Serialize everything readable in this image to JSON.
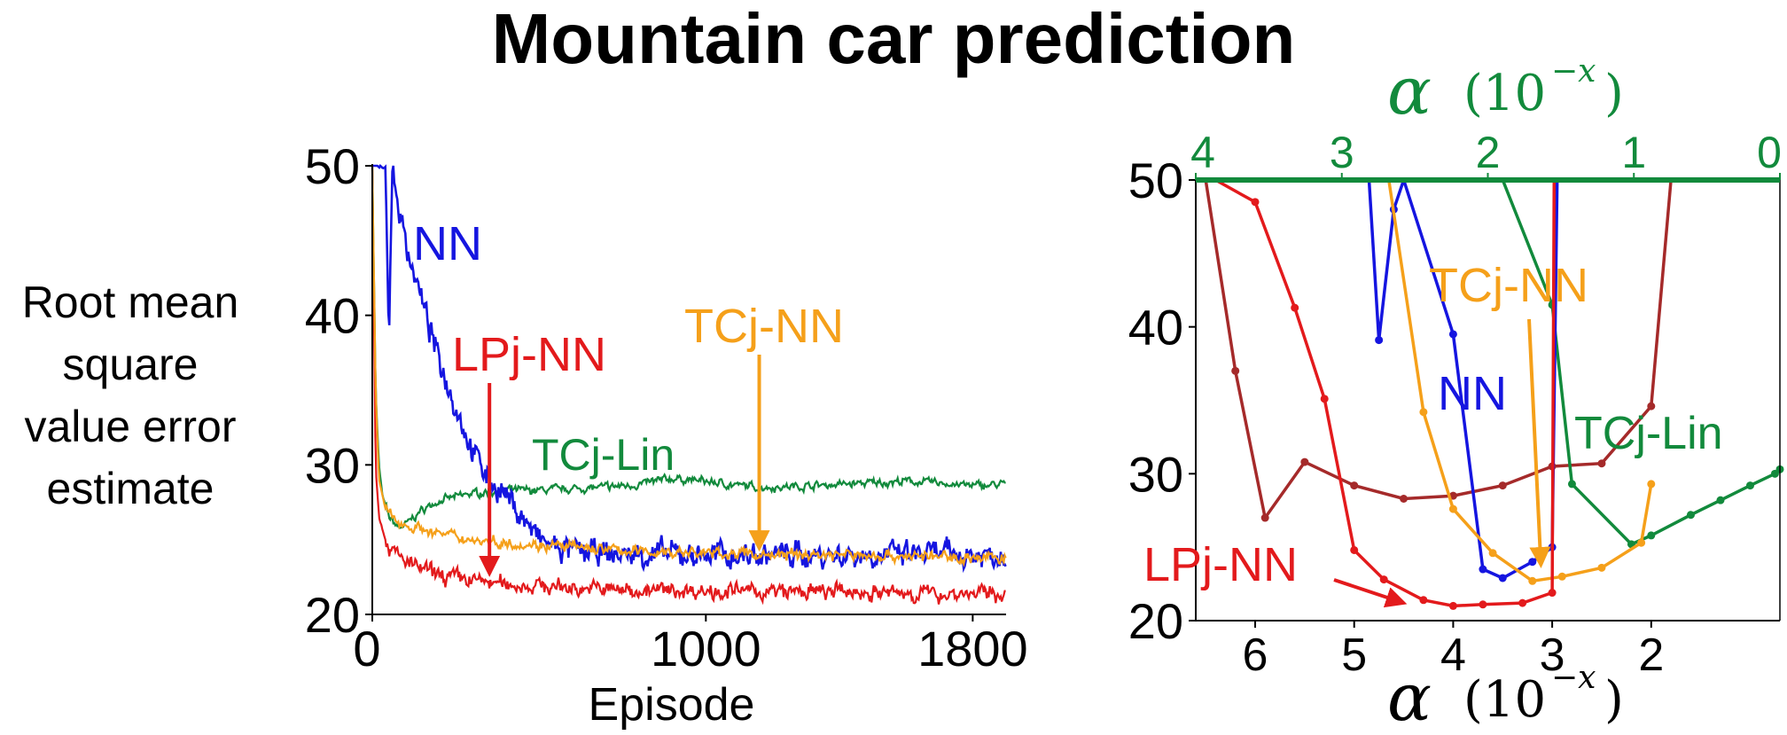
{
  "page": {
    "title": "Mountain car prediction"
  },
  "colors": {
    "NN": "#1515e0",
    "LPj-NN": "#e31a1c",
    "TCj-NN": "#f5a01a",
    "TCj-Lin": "#128a3c",
    "other": "#a52a2a",
    "axis": "#000000",
    "top_axis": "#128a3c"
  },
  "chart_data": [
    {
      "type": "line",
      "title": "",
      "xlabel": "Episode",
      "ylabel": "Root mean square value error estimate",
      "ylabel_lines": [
        "Root mean",
        "square",
        "value error",
        "estimate"
      ],
      "xlim": [
        0,
        1900
      ],
      "ylim": [
        20,
        50
      ],
      "xticks": [
        0,
        1000,
        1800
      ],
      "xtick_labels": [
        "0",
        "1000",
        "1800"
      ],
      "yticks": [
        20,
        30,
        40,
        50
      ],
      "ytick_labels": [
        "20",
        "30",
        "40",
        "50"
      ],
      "annotations": [
        {
          "text": "NN",
          "series": "NN"
        },
        {
          "text": "LPj-NN",
          "series": "LPj-NN",
          "arrow_to": [
            330,
            22.5
          ]
        },
        {
          "text": "TCj-NN",
          "series": "TCj-NN",
          "arrow_to": [
            1160,
            24.2
          ]
        },
        {
          "text": "TCj-Lin",
          "series": "TCj-Lin"
        }
      ],
      "series": [
        {
          "name": "NN",
          "x": [
            0,
            40,
            50,
            60,
            80,
            100,
            130,
            160,
            200,
            250,
            300,
            350,
            400,
            450,
            500,
            550,
            600,
            700,
            800,
            1000,
            1200,
            1400,
            1600,
            1800,
            1900
          ],
          "y": [
            50,
            50,
            38,
            50,
            47,
            45,
            42.5,
            40,
            37,
            34,
            31,
            29,
            28,
            26.5,
            25,
            24.5,
            24.2,
            24,
            24,
            24,
            24,
            24,
            24,
            24,
            24
          ]
        },
        {
          "name": "LPj-NN",
          "x": [
            0,
            10,
            20,
            40,
            60,
            100,
            150,
            200,
            300,
            400,
            600,
            800,
            1000,
            1200,
            1400,
            1600,
            1800,
            1900
          ],
          "y": [
            50,
            30,
            26.5,
            25,
            24.2,
            23.5,
            23,
            22.6,
            22.3,
            22,
            21.8,
            21.6,
            21.6,
            21.5,
            21.5,
            21.4,
            21.4,
            21.4
          ]
        },
        {
          "name": "TCj-NN",
          "x": [
            0,
            10,
            20,
            40,
            60,
            100,
            200,
            300,
            400,
            600,
            800,
            1000,
            1200,
            1400,
            1600,
            1800,
            1900
          ],
          "y": [
            50,
            35,
            29,
            27,
            26.5,
            26,
            25.4,
            25,
            24.8,
            24.5,
            24.2,
            24.1,
            24,
            24,
            23.9,
            23.8,
            23.8
          ]
        },
        {
          "name": "TCj-Lin",
          "x": [
            0,
            10,
            20,
            30,
            50,
            80,
            100,
            150,
            200,
            300,
            400,
            500,
            600,
            700,
            800,
            900,
            1000,
            1100,
            1200,
            1300,
            1400,
            1500,
            1600,
            1700,
            1800,
            1900
          ],
          "y": [
            50,
            35,
            30,
            28,
            26.5,
            25.8,
            26,
            27,
            27.6,
            28.1,
            28.3,
            28.3,
            28.4,
            28.5,
            28.7,
            29.1,
            28.9,
            28.6,
            28.5,
            28.6,
            28.7,
            28.8,
            28.9,
            28.8,
            28.6,
            28.7
          ]
        }
      ]
    },
    {
      "type": "line",
      "title": "",
      "xlabel": "α (10^-x)",
      "xlabel_text": [
        "α",
        "(10",
        "−x",
        ")"
      ],
      "top_xlabel": "α (10^-x)",
      "x_reversed": true,
      "xlim": [
        6.6,
        0.7
      ],
      "ylim": [
        20,
        50
      ],
      "xticks": [
        6,
        5,
        4,
        3,
        2
      ],
      "xtick_labels": [
        "6",
        "5",
        "4",
        "3",
        "2"
      ],
      "yticks": [
        20,
        30,
        40,
        50
      ],
      "ytick_labels": [
        "20",
        "30",
        "40",
        "50"
      ],
      "top_axis": {
        "xlim": [
          4,
          0
        ],
        "xticks": [
          4,
          3,
          2,
          1,
          0
        ],
        "xtick_labels": [
          "4",
          "3",
          "2",
          "1",
          "0"
        ]
      },
      "annotations": [
        {
          "text": "TCj-NN",
          "series": "TCj-NN",
          "arrow_to": [
            3.15,
            23.2
          ]
        },
        {
          "text": "NN",
          "series": "NN"
        },
        {
          "text": "TCj-Lin",
          "series": "TCj-Lin"
        },
        {
          "text": "LPj-NN",
          "series": "LPj-NN",
          "arrow_to": [
            4.5,
            21.2
          ]
        }
      ],
      "series": [
        {
          "name": "LPj-NN",
          "x": [
            6.4,
            6.0,
            5.6,
            5.3,
            5.0,
            4.7,
            4.3,
            4.0,
            3.7,
            3.3,
            3.0,
            2.98
          ],
          "y": [
            50,
            48.5,
            41.3,
            35.1,
            24.8,
            22.8,
            21.4,
            21.0,
            21.1,
            21.2,
            21.9,
            50
          ]
        },
        {
          "name": "NN",
          "x": [
            4.85,
            4.75,
            4.6,
            4.5,
            4.0,
            3.7,
            3.5,
            3.2,
            3.0,
            2.95
          ],
          "y": [
            50,
            39.1,
            48,
            50,
            39.5,
            23.5,
            22.9,
            24.0,
            25.0,
            50
          ]
        },
        {
          "name": "TCj-NN",
          "x": [
            4.65,
            4.3,
            4.0,
            3.6,
            3.2,
            2.9,
            2.5,
            2.1,
            2.0
          ],
          "y": [
            50,
            34.2,
            27.6,
            24.6,
            22.7,
            23.0,
            23.6,
            25.3,
            29.3
          ]
        },
        {
          "name": "TCj-Lin",
          "x": [
            3.5,
            3.0,
            2.8,
            2.2,
            2.0,
            1.6,
            1.3,
            1.0,
            0.75,
            0.7
          ],
          "y": [
            50,
            41.5,
            29.3,
            25.2,
            25.8,
            27.2,
            28.2,
            29.2,
            30.0,
            30.3
          ]
        },
        {
          "name": "other",
          "x": [
            6.5,
            6.2,
            5.9,
            5.5,
            5.0,
            4.5,
            4.0,
            3.5,
            3.0,
            2.5,
            2.0,
            1.8
          ],
          "y": [
            50,
            37.0,
            27.0,
            30.8,
            29.2,
            28.3,
            28.5,
            29.2,
            30.5,
            30.7,
            34.6,
            50
          ]
        }
      ]
    }
  ]
}
